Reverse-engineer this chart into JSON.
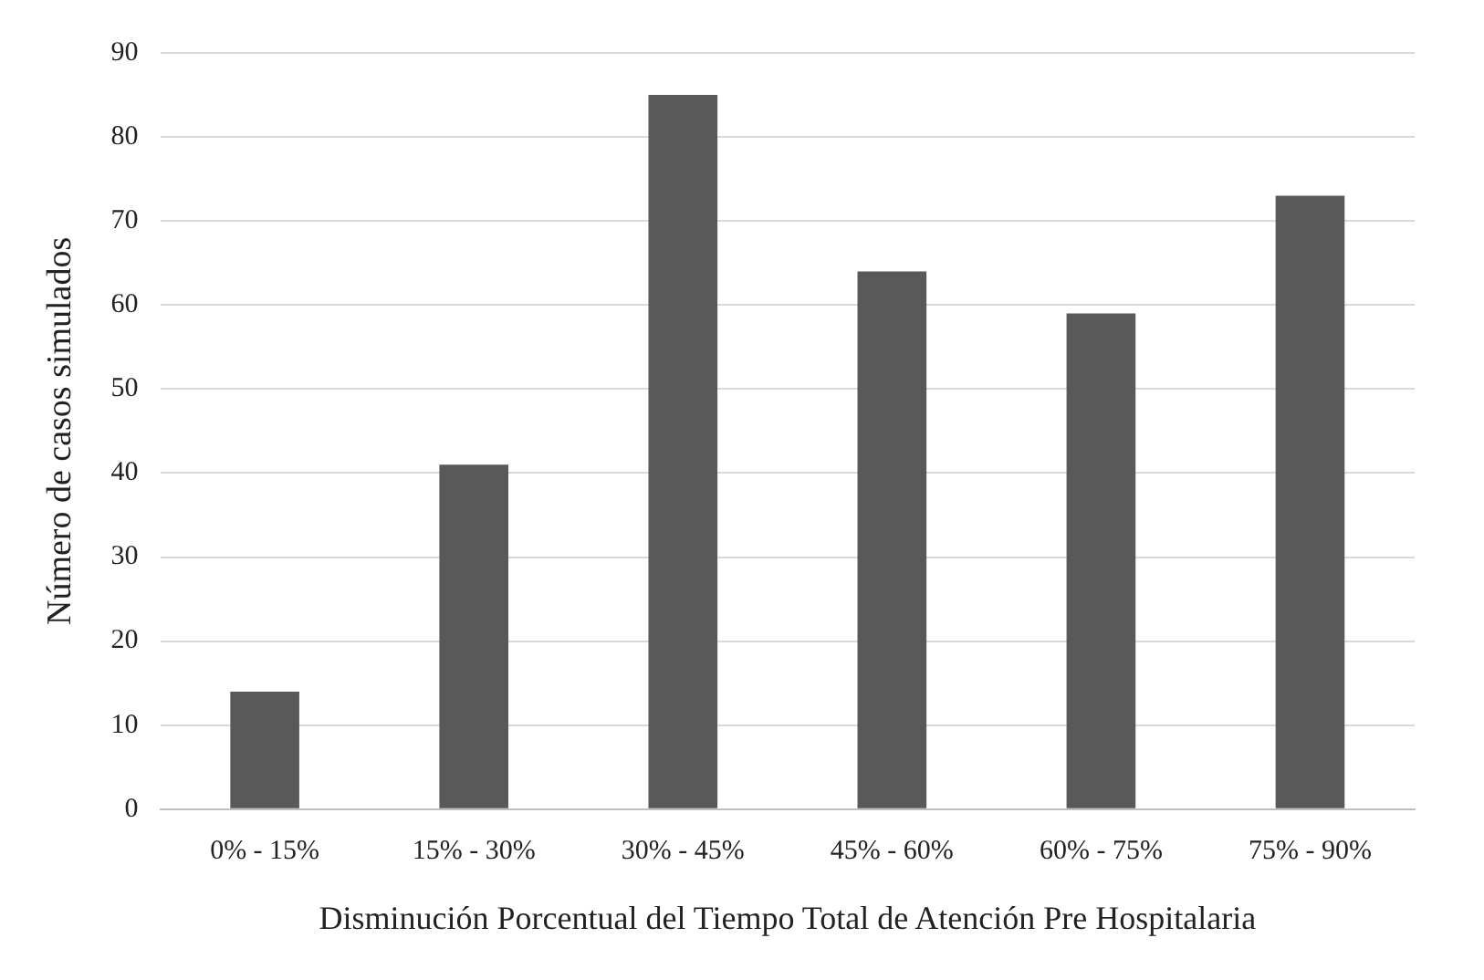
{
  "chart_data": {
    "type": "bar",
    "xlabel": "Disminución Porcentual del Tiempo Total de Atención Pre Hospitalaria",
    "ylabel": "Número de casos simulados",
    "categories": [
      "0% - 15%",
      "15% - 30%",
      "30% - 45%",
      "45% - 60%",
      "60% - 75%",
      "75% - 90%"
    ],
    "values": [
      14,
      41,
      85,
      64,
      59,
      73
    ],
    "color": "#595959",
    "ylim": [
      0,
      90
    ],
    "yticks": [
      0,
      10,
      20,
      30,
      40,
      50,
      60,
      70,
      80,
      90
    ],
    "grid": "y",
    "legend": false
  }
}
